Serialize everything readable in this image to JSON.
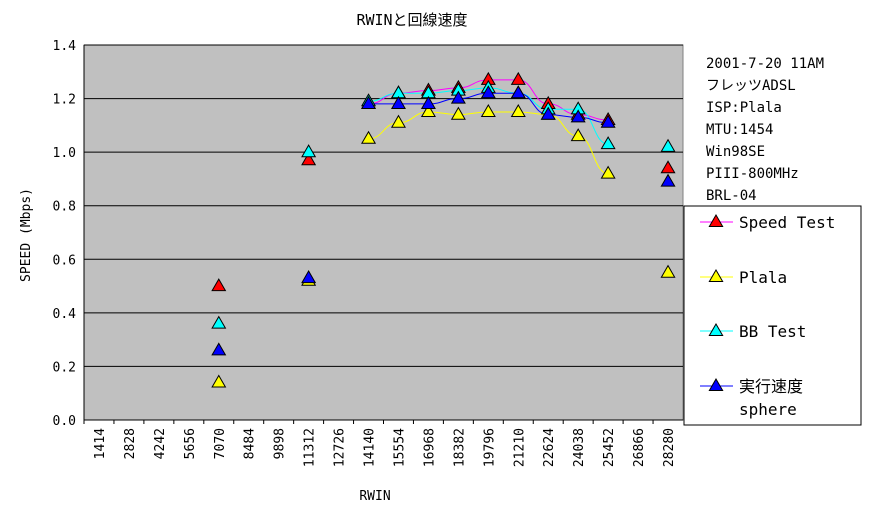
{
  "chart_data": {
    "type": "line",
    "title": "RWINと回線速度",
    "xlabel": "RWIN",
    "ylabel": "SPEED (Mbps)",
    "ylim": [
      0,
      1.4
    ],
    "yticks": [
      "0.0",
      "0.2",
      "0.4",
      "0.6",
      "0.8",
      "1.0",
      "1.2",
      "1.4"
    ],
    "categories": [
      "1414",
      "2828",
      "4242",
      "5656",
      "7070",
      "8484",
      "9898",
      "11312",
      "12726",
      "14140",
      "15554",
      "16968",
      "18382",
      "19796",
      "21210",
      "22624",
      "24038",
      "25452",
      "26866",
      "28280"
    ],
    "grid": "horizontal",
    "legend_position": "right",
    "series": [
      {
        "name": "Speed Test",
        "color": "#ff0000",
        "line_color": "#ff00ff",
        "marker": "triangle",
        "x": [
          7070,
          11312,
          14140,
          15554,
          16968,
          18382,
          19796,
          21210,
          22624,
          24038,
          25452,
          28280
        ],
        "y": [
          0.5,
          0.97,
          1.18,
          1.22,
          1.23,
          1.24,
          1.27,
          1.27,
          1.18,
          1.14,
          1.12,
          0.94
        ]
      },
      {
        "name": "Plala",
        "color": "#ffff00",
        "line_color": "#ffff00",
        "marker": "triangle",
        "x": [
          7070,
          11312,
          14140,
          15554,
          16968,
          18382,
          19796,
          21210,
          22624,
          24038,
          25452,
          28280
        ],
        "y": [
          0.14,
          0.52,
          1.05,
          1.11,
          1.15,
          1.14,
          1.15,
          1.15,
          1.14,
          1.06,
          0.92,
          0.55
        ]
      },
      {
        "name": "BB Test",
        "color": "#00ffff",
        "line_color": "#00ffff",
        "marker": "triangle",
        "x": [
          7070,
          11312,
          14140,
          15554,
          16968,
          18382,
          19796,
          21210,
          22624,
          24038,
          25452,
          28280
        ],
        "y": [
          0.36,
          1.0,
          1.19,
          1.22,
          1.22,
          1.23,
          1.24,
          1.22,
          1.16,
          1.16,
          1.03,
          1.02
        ]
      },
      {
        "name": "実行速度",
        "name_line2": "sphere",
        "color": "#0000ff",
        "line_color": "#0000ff",
        "marker": "triangle",
        "x": [
          7070,
          11312,
          14140,
          15554,
          16968,
          18382,
          19796,
          21210,
          22624,
          24038,
          25452,
          28280
        ],
        "y": [
          0.26,
          0.53,
          1.18,
          1.18,
          1.18,
          1.2,
          1.22,
          1.22,
          1.14,
          1.13,
          1.11,
          0.89
        ]
      }
    ],
    "annotations": [
      "2001-7-20 11AM",
      "フレッツADSL",
      "ISP:Plala",
      "MTU:1454",
      "Win98SE",
      "PIII-800MHz",
      "BRL-04"
    ]
  },
  "colors": {
    "plot_background": "#c0c0c0",
    "gridline": "#000000",
    "page_background": "#ffffff"
  }
}
